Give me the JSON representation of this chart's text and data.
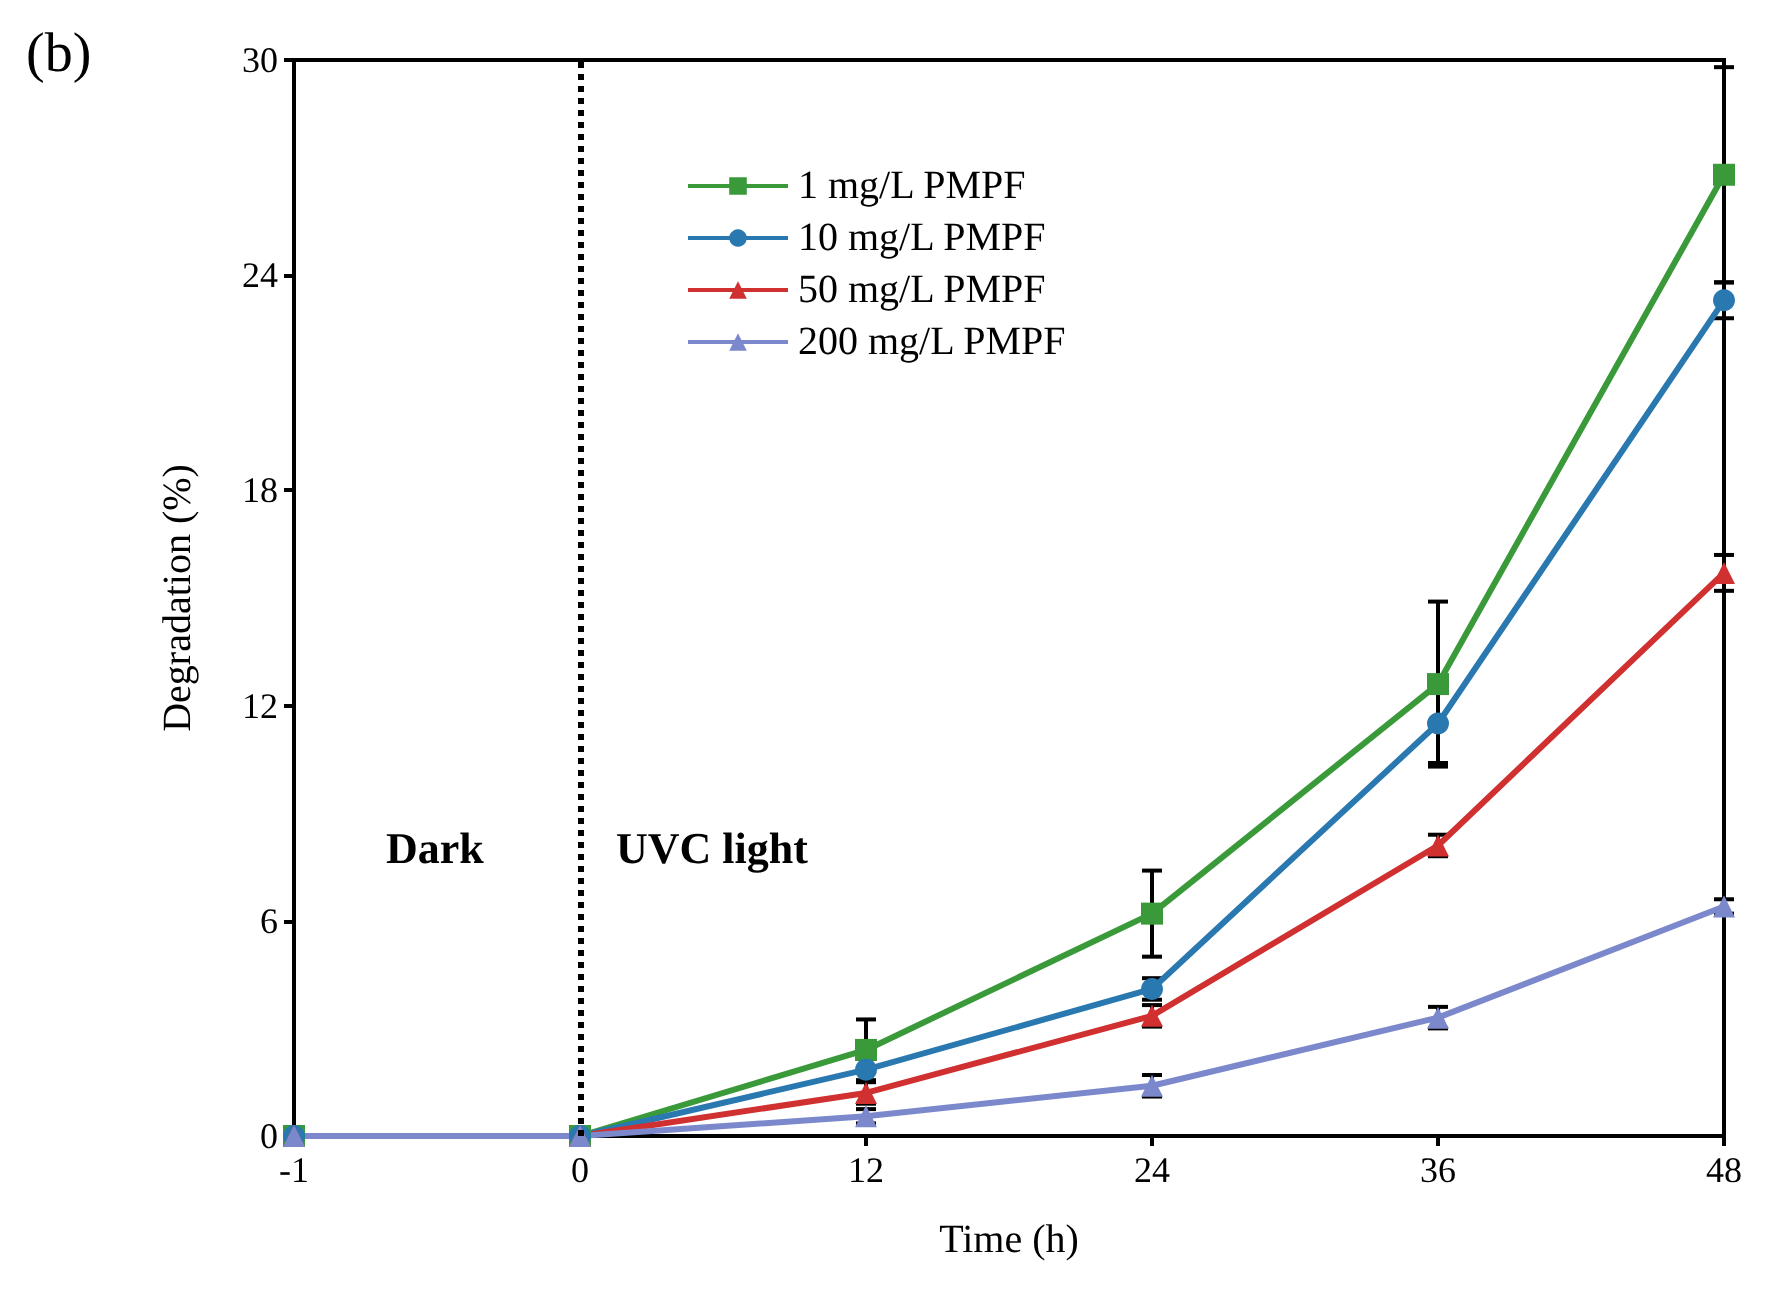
{
  "chart_data": {
    "type": "line",
    "title": "(b)",
    "xlabel": "Time (h)",
    "ylabel": "Degradation (%)",
    "categories": [
      "-1",
      "0",
      "12",
      "24",
      "36",
      "48"
    ],
    "series": [
      {
        "name": "1 mg/L PMPF",
        "color": "#3a9a3a",
        "marker": "square",
        "values": [
          0,
          0,
          2.4,
          6.2,
          12.6,
          26.8
        ],
        "errors": [
          null,
          null,
          0.85,
          1.2,
          2.3,
          3
        ]
      },
      {
        "name": "10 mg/L PMPF",
        "color": "#2a78b0",
        "marker": "circle",
        "values": [
          0,
          0,
          1.85,
          4.1,
          11.5,
          23.3
        ],
        "errors": [
          null,
          null,
          0.3,
          0.3,
          1.1,
          0.5
        ]
      },
      {
        "name": "50 mg/L PMPF",
        "color": "#d03030",
        "marker": "triangle",
        "values": [
          0,
          0,
          1.2,
          3.35,
          8.1,
          15.7
        ],
        "errors": [
          null,
          null,
          0.3,
          0.3,
          0.3,
          0.5
        ]
      },
      {
        "name": "200 mg/L PMPF",
        "color": "#7b88cc",
        "marker": "triangle",
        "values": [
          0,
          0,
          0.55,
          1.4,
          3.3,
          6.4
        ],
        "errors": [
          null,
          null,
          0.2,
          0.3,
          0.3,
          0.2
        ]
      }
    ],
    "ylim": [
      0,
      30
    ],
    "yticks": [
      0,
      6,
      12,
      18,
      24,
      30
    ],
    "grid": false,
    "legend": "top",
    "ref_lines": [
      {
        "axis": "x",
        "value": "0",
        "color": "#000000",
        "line_style": "dotted"
      }
    ],
    "annotations": [
      "Dark",
      "UVC light"
    ]
  }
}
